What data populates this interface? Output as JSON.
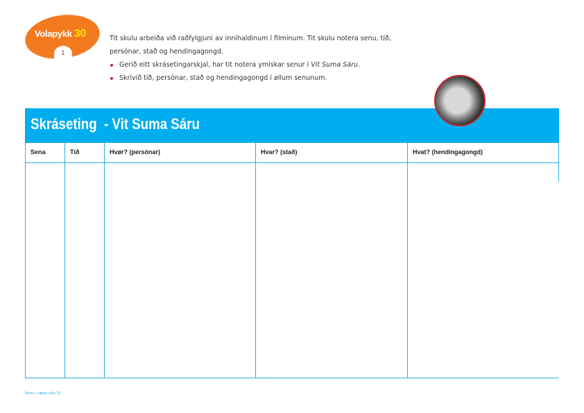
{
  "logo": {
    "brand": "Volapykk",
    "number": "30",
    "badge": "1"
  },
  "intro": {
    "paragraph": "Tit skulu arbeiða við raðfylgjuni av innihaldinum í filminum. Tit skulu notera senu, tíð, persónar, stað og hendingagongd.",
    "bullets": [
      {
        "text": "Gerið eitt skrásetingarskjal, har tit notera ymiskar senur í ",
        "italic": "Vit Suma Sáru",
        "end": "."
      },
      {
        "text": "Skrivið tíð, persónar, stað og hendingagongd í øllum senunum."
      }
    ]
  },
  "banner": {
    "title": "Skráseting  - Vit Suma Sáru",
    "color": "#00aeef"
  },
  "table": {
    "headers": [
      "Sena",
      "Tíð",
      "Hvør? (persónar)",
      "Hvar? (stað)",
      "Hvat? (hendingagongd)"
    ]
  },
  "footer": {
    "text": "Nemi í sætta síða 32"
  }
}
